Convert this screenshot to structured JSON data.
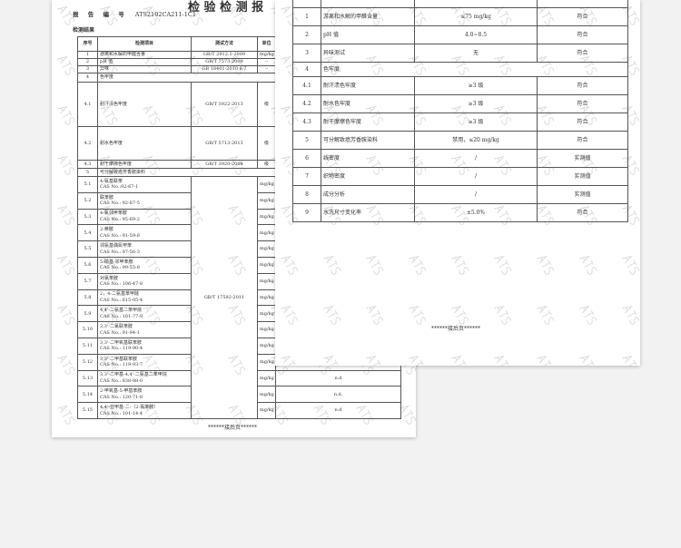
{
  "watermark": "ATS",
  "left_page": {
    "title": "检 验 检 测 报",
    "report_no_label": "报 告 编 号",
    "report_no": "ATS2102CA211-1C1",
    "section": "检测结果",
    "headers": [
      "序号",
      "检测项目",
      "测试方法",
      "单位",
      ""
    ],
    "rows": [
      {
        "no": "1",
        "item": "游离和水解的甲醛含量",
        "method": "GB/T 2912.1-2009",
        "unit": "mg/kg",
        "result": ""
      },
      {
        "no": "2",
        "item": "pH 值",
        "method": "GB/T 7573-2009",
        "unit": "--",
        "result": ""
      },
      {
        "no": "3",
        "item": "异味",
        "method": "GB 18401-2010 6.7",
        "unit": "--",
        "result": ""
      },
      {
        "no": "4",
        "item": "色牢度",
        "method": "",
        "unit": "",
        "result": ""
      },
      {
        "no": "4.1",
        "item": "耐汗渍色牢度",
        "method": "GB/T 3922-2013",
        "unit": "级",
        "result": ""
      },
      {
        "no": "4.2",
        "item": "耐水色牢度",
        "method": "GB/T 5713-2013",
        "unit": "级",
        "result": ""
      },
      {
        "no": "4.3",
        "item": "耐干摩擦色牢度",
        "method": "GB/T 3920-2008",
        "unit": "级",
        "result": ""
      },
      {
        "no": "5",
        "item": "可分解致癌芳香胺染料",
        "method": "",
        "unit": "",
        "result": ""
      }
    ],
    "amine_method": "GB/T 17592-2011",
    "amines": [
      {
        "no": "5.1",
        "item": "4-氨基联苯",
        "cas": "CAS No.:92-67-1",
        "unit": "mg/kg",
        "result": ""
      },
      {
        "no": "5.2",
        "item": "联苯胺",
        "cas": "CAS No.: 92-87-5",
        "unit": "mg/kg",
        "result": ""
      },
      {
        "no": "5.3",
        "item": "4-氯邻甲苯胺",
        "cas": "CAS No.: 95-69-2",
        "unit": "mg/kg",
        "result": ""
      },
      {
        "no": "5.4",
        "item": "2-萘胺",
        "cas": "CAS No.: 91-59-8",
        "unit": "mg/kg",
        "result": ""
      },
      {
        "no": "5.5",
        "item": "邻氨基偶氮甲苯",
        "cas": "CAS No.: 97-56-3",
        "unit": "mg/kg",
        "result": ""
      },
      {
        "no": "5.6",
        "item": "5-硝基-邻甲苯胺",
        "cas": "CAS No.: 99-55-8",
        "unit": "mg/kg",
        "result": ""
      },
      {
        "no": "5.7",
        "item": "对氯苯胺",
        "cas": "CAS No.: 106-47-8",
        "unit": "mg/kg",
        "result": ""
      },
      {
        "no": "5.8",
        "item": "2，4-二氨基苯甲醚",
        "cas": "CAS No.: 615-05-4",
        "unit": "mg/kg",
        "result": ""
      },
      {
        "no": "5.9",
        "item": "4,4'-二氨基二苯甲烷",
        "cas": "CAS No.: 101-77-9",
        "unit": "mg/kg",
        "result": ""
      },
      {
        "no": "5.10",
        "item": "3,3'-二氯联苯胺",
        "cas": "CAS No.: 91-94-1",
        "unit": "mg/kg",
        "result": ""
      },
      {
        "no": "5.11",
        "item": "3,3'-二甲氧基联苯胺",
        "cas": "CAS No.: 119-90-4",
        "unit": "mg/kg",
        "result": ""
      },
      {
        "no": "5.12",
        "item": "3,3'-二甲基联苯胺",
        "cas": "CAS No.: 119-93-7",
        "unit": "mg/kg",
        "result": ""
      },
      {
        "no": "5.13",
        "item": "3,3'-二甲基-4,4'-二氨基二苯甲烷",
        "cas": "CAS No.: 838-88-0",
        "unit": "mg/kg",
        "result": "n.d"
      },
      {
        "no": "5.14",
        "item": "2-甲氧基-5-甲基苯胺",
        "cas": "CAS No.: 120-71-8",
        "unit": "mg/kg",
        "result": "n.d."
      },
      {
        "no": "5.15",
        "item": "4,4'-亚甲基-二-（2-氯苯胺）",
        "cas": "CAS No.: 101-14-4",
        "unit": "mg/kg",
        "result": "n.d"
      }
    ],
    "footer": "******接后页******"
  },
  "right_page": {
    "rows": [
      {
        "no": "1",
        "item": "游离和水解的甲醛含量",
        "req": "≤75 mg/kg",
        "verdict": "符合"
      },
      {
        "no": "2",
        "item": "pH 值",
        "req": "4.0~8.5",
        "verdict": "符合"
      },
      {
        "no": "3",
        "item": "异味测试",
        "req": "无",
        "verdict": "符合"
      },
      {
        "no": "4",
        "item": "色牢度",
        "req": "",
        "verdict": ""
      },
      {
        "no": "4.1",
        "item": "耐汗渍色牢度",
        "req": "≥3 级",
        "verdict": "符合"
      },
      {
        "no": "4.2",
        "item": "耐水色牢度",
        "req": "≥3 级",
        "verdict": "符合"
      },
      {
        "no": "4.3",
        "item": "耐干摩擦色牢度",
        "req": "≥3 级",
        "verdict": "符合"
      },
      {
        "no": "5",
        "item": "可分解致癌芳香胺染料",
        "req": "禁用，≤20 mg/kg",
        "verdict": "符合"
      },
      {
        "no": "6",
        "item": "线密度",
        "req": "/",
        "verdict": "实测值"
      },
      {
        "no": "7",
        "item": "织物密度",
        "req": "/",
        "verdict": "实测值"
      },
      {
        "no": "8",
        "item": "成分分析",
        "req": "/",
        "verdict": "实测值"
      },
      {
        "no": "9",
        "item": "水洗尺寸变化率",
        "req": "±5.0%",
        "verdict": "符合"
      }
    ],
    "footer": "******接后页******"
  }
}
